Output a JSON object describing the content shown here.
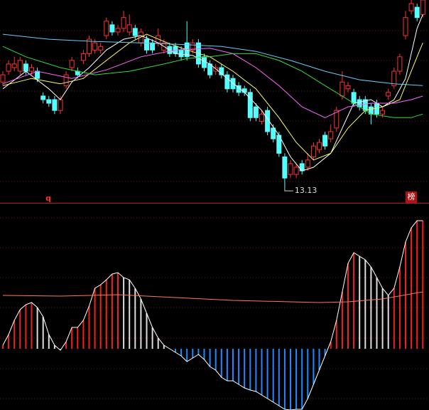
{
  "chart_data": [
    {
      "type": "candlestick",
      "up_color": "#ff3232",
      "down_color": "#54ffff",
      "ylim": [
        12.8,
        17.3
      ],
      "open": [
        15.48,
        15.72,
        15.8,
        15.72,
        15.88,
        15.72,
        15.72,
        15.17,
        15.09,
        15.09,
        14.85,
        15.4,
        15.8,
        15.72,
        15.96,
        16.11,
        16.19,
        16.19,
        16.51,
        16.75,
        16.59,
        16.67,
        16.59,
        16.67,
        16.35,
        16.43,
        16.35,
        16.35,
        16.19,
        16.27,
        16.27,
        16.19,
        16.35,
        16.19,
        16.35,
        16.04,
        15.88,
        15.72,
        15.8,
        15.64,
        15.56,
        15.4,
        15.33,
        15.25,
        14.93,
        14.61,
        14.85,
        14.46,
        14.3,
        13.82,
        13.43,
        13.43,
        13.67,
        13.59,
        13.82,
        13.98,
        14.3,
        14.22,
        14.46,
        15.17,
        15.33,
        15.25,
        15.09,
        15.09,
        14.93,
        15.01,
        14.77,
        15.17,
        15.4,
        15.72,
        16.51,
        17.06,
        17.14,
        16.98
      ],
      "high": [
        15.72,
        15.96,
        16.04,
        16.04,
        15.96,
        15.88,
        15.8,
        15.25,
        15.17,
        15.17,
        15.17,
        15.72,
        16.04,
        15.8,
        16.19,
        16.51,
        16.43,
        16.35,
        16.91,
        16.83,
        16.75,
        17.06,
        16.98,
        16.75,
        16.67,
        16.51,
        16.43,
        16.67,
        16.43,
        16.35,
        16.35,
        16.27,
        16.83,
        16.43,
        16.43,
        16.11,
        15.96,
        15.88,
        15.88,
        15.72,
        15.64,
        15.48,
        15.4,
        15.33,
        15.01,
        14.85,
        14.93,
        14.54,
        14.38,
        13.9,
        13.75,
        13.67,
        13.75,
        13.9,
        14.14,
        14.22,
        14.38,
        14.54,
        14.93,
        15.72,
        15.48,
        15.33,
        15.17,
        15.17,
        15.01,
        15.09,
        14.93,
        15.33,
        15.8,
        16.11,
        17.06,
        17.3,
        17.22,
        17.3
      ],
      "low": [
        15.4,
        15.64,
        15.72,
        15.64,
        15.64,
        15.64,
        15.48,
        15.01,
        14.93,
        14.77,
        14.77,
        15.33,
        15.72,
        15.56,
        15.88,
        16.04,
        16.11,
        16.11,
        16.43,
        16.51,
        16.51,
        16.59,
        16.51,
        16.43,
        16.27,
        16.11,
        16.11,
        16.27,
        16.11,
        16.04,
        16.04,
        15.96,
        15.96,
        16.11,
        15.8,
        15.72,
        15.56,
        15.64,
        15.56,
        15.25,
        15.25,
        15.17,
        15.17,
        14.61,
        14.61,
        14.54,
        14.3,
        14.14,
        13.82,
        13.13,
        13.35,
        13.35,
        13.43,
        13.51,
        13.75,
        13.9,
        13.98,
        14.14,
        14.38,
        15.09,
        15.25,
        14.93,
        14.85,
        14.77,
        14.54,
        14.69,
        14.69,
        15.09,
        15.33,
        15.64,
        16.43,
        16.98,
        16.83,
        16.91
      ],
      "close": [
        15.64,
        15.88,
        15.88,
        15.96,
        15.72,
        15.8,
        15.56,
        15.09,
        15.01,
        14.85,
        15.09,
        15.64,
        15.96,
        15.64,
        16.11,
        16.43,
        16.35,
        16.27,
        16.83,
        16.59,
        16.67,
        16.91,
        16.75,
        16.51,
        16.59,
        16.19,
        16.19,
        16.51,
        16.35,
        16.11,
        16.11,
        16.04,
        16.04,
        16.35,
        15.88,
        15.8,
        15.64,
        15.8,
        15.64,
        15.33,
        15.33,
        15.25,
        15.25,
        14.69,
        14.69,
        14.77,
        14.38,
        14.22,
        13.9,
        13.35,
        13.67,
        13.59,
        13.51,
        13.75,
        14.06,
        14.14,
        14.06,
        14.38,
        14.85,
        15.48,
        15.4,
        15.01,
        14.93,
        14.85,
        14.77,
        14.77,
        14.85,
        15.25,
        15.72,
        16.04,
        16.91,
        17.22,
        16.91,
        17.3
      ],
      "series": [
        {
          "color": "#ffffff",
          "x": [
            0,
            4,
            8,
            10,
            12,
            15,
            18,
            21,
            24,
            27,
            30,
            33,
            36,
            39,
            42,
            45,
            48,
            50,
            52,
            54,
            57,
            59,
            61,
            64,
            66,
            68,
            70,
            72,
            73
          ],
          "values": [
            15.33,
            15.72,
            15.33,
            15.09,
            15.48,
            15.8,
            16.19,
            16.43,
            16.51,
            16.35,
            16.11,
            16.07,
            15.88,
            15.56,
            15.25,
            14.85,
            14.3,
            13.82,
            13.51,
            13.59,
            13.9,
            14.46,
            15.01,
            15.09,
            14.93,
            15.09,
            15.56,
            16.67,
            16.98
          ]
        },
        {
          "color": "#ffff66",
          "x": [
            0,
            5,
            10,
            14,
            18,
            22,
            25,
            28,
            32,
            36,
            40,
            44,
            48,
            51,
            54,
            57,
            60,
            63,
            66,
            69,
            72,
            73
          ],
          "values": [
            15.4,
            15.56,
            15.44,
            15.56,
            15.96,
            16.35,
            16.54,
            16.38,
            16.19,
            16.04,
            15.72,
            15.33,
            14.69,
            14.14,
            13.75,
            13.9,
            14.46,
            14.85,
            14.93,
            15.09,
            16.04,
            16.35
          ]
        },
        {
          "color": "#ff66ff",
          "x": [
            0,
            6,
            12,
            18,
            24,
            30,
            36,
            40,
            44,
            48,
            52,
            56,
            60,
            64,
            68,
            71,
            73
          ],
          "values": [
            15.44,
            15.72,
            15.56,
            15.75,
            16.04,
            16.19,
            16.23,
            16.11,
            15.8,
            15.4,
            14.93,
            14.69,
            14.93,
            15.01,
            15.01,
            15.09,
            15.17
          ]
        },
        {
          "color": "#33dd33",
          "x": [
            0,
            4,
            10,
            16,
            22,
            28,
            32,
            36,
            40,
            44,
            48,
            52,
            56,
            60,
            64,
            68,
            71,
            73
          ],
          "values": [
            16.27,
            16.04,
            15.8,
            15.64,
            15.72,
            15.88,
            16.0,
            16.04,
            16.11,
            16.11,
            15.96,
            15.72,
            15.4,
            15.09,
            14.77,
            14.69,
            14.69,
            14.77
          ]
        },
        {
          "color": "#66ccff",
          "x": [
            0,
            8,
            16,
            24,
            30,
            38,
            44,
            50,
            56,
            62,
            68,
            73
          ],
          "values": [
            16.54,
            16.43,
            16.38,
            16.35,
            16.32,
            16.27,
            16.16,
            15.96,
            15.72,
            15.53,
            15.44,
            15.4
          ]
        }
      ],
      "annotations": [
        {
          "text": "13.13",
          "index": 49
        }
      ],
      "markers": [
        "q",
        "榜"
      ]
    },
    {
      "type": "bar",
      "rise_color": "#ee2222",
      "fall_color": "#dddddd",
      "neg_color": "#2288ff",
      "ylim": [
        -43,
        100
      ],
      "values": [
        2.5,
        10,
        20,
        27.5,
        31,
        32.5,
        29,
        22.5,
        10,
        2.5,
        -1,
        5,
        15,
        15,
        20,
        30,
        42.5,
        45,
        48.5,
        52.5,
        53.5,
        50,
        48.5,
        42.5,
        35,
        25,
        15,
        7.5,
        2.5,
        0,
        -2.5,
        -5,
        -9,
        -6.5,
        -4,
        -7.5,
        -12.5,
        -15,
        -20,
        -22.5,
        -22.5,
        -25,
        -27.5,
        -29,
        -30,
        -32.5,
        -35,
        -37.5,
        -40,
        -42.5,
        -43,
        -42.5,
        -42.5,
        -35,
        -25,
        -15,
        -5,
        5,
        20,
        40,
        60,
        67.5,
        65,
        62.5,
        57.5,
        50,
        42.5,
        37.5,
        42.5,
        57.5,
        75,
        85,
        90,
        90
      ],
      "series": [
        {
          "color": "#ff7755",
          "x": [
            0,
            10,
            20,
            30,
            40,
            50,
            55,
            60,
            66,
            73
          ],
          "values": [
            37.5,
            37,
            38,
            36,
            34,
            33,
            32.5,
            33,
            35,
            40
          ]
        }
      ]
    }
  ]
}
